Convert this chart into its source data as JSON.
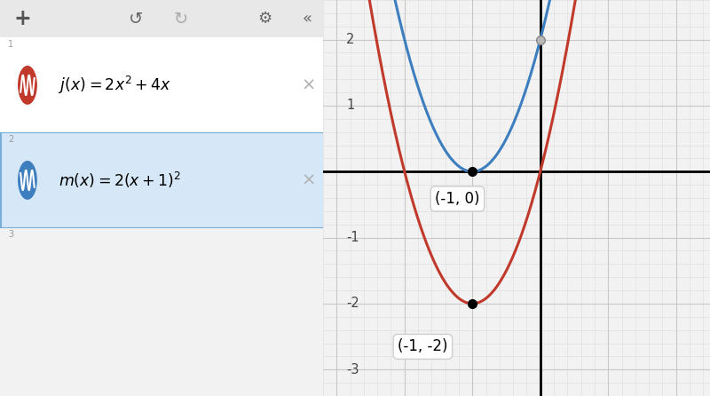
{
  "bg_color": "#f2f2f2",
  "graph_bg": "#f2f2f2",
  "axis_color": "#000000",
  "j_color": "#c0392b",
  "m_color": "#3d7ebf",
  "xlim": [
    -3.2,
    2.5
  ],
  "ylim": [
    -3.4,
    2.6
  ],
  "xticks": [
    -3,
    -2,
    -1,
    1,
    2
  ],
  "yticks": [
    -3,
    -2,
    -1,
    1,
    2
  ],
  "point1_x": -1,
  "point1_y": 0,
  "point2_x": -1,
  "point2_y": -2,
  "point3_x": 0,
  "point3_y": 2,
  "label1": "(-1, 0)",
  "label2": "(-1, -2)",
  "row1_bg": "#ffffff",
  "row2_bg": "#d6e8f7",
  "row2_border": "#7aaed6",
  "toolbar_bg": "#e8e8e8",
  "panel_bg": "#f5f5f5",
  "j_formula": "$j(x) = 2x^2 + 4x$",
  "m_formula": "$m(x) = 2(x+1)^2$",
  "linewidth": 2.2,
  "minor_grid_color": "#dcdcdc",
  "major_grid_color": "#c8c8c8"
}
